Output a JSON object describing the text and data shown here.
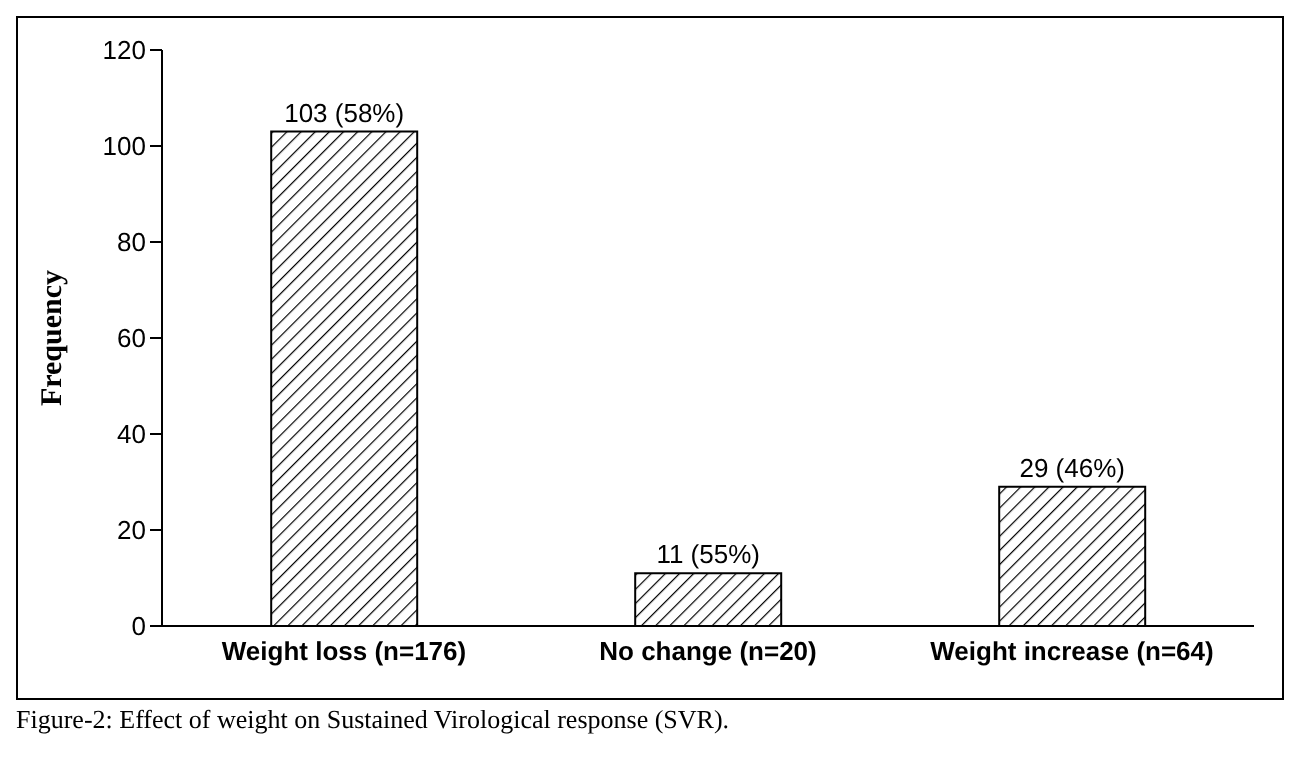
{
  "chart_data": {
    "type": "bar",
    "ylabel": "Frequency",
    "categories": [
      "Weight loss (n=176)",
      "No change (n=20)",
      "Weight increase (n=64)"
    ],
    "values": [
      103,
      11,
      29
    ],
    "value_labels": [
      "103 (58%)",
      "11 (55%)",
      "29 (46%)"
    ],
    "color": "#000000",
    "ylim": [
      0,
      120
    ],
    "yticks": [
      0,
      20,
      40,
      60,
      80,
      100,
      120
    ],
    "grid": false,
    "annotations": [
      "Figure-2: Effect of weight on Sustained Virological response (SVR)."
    ]
  }
}
